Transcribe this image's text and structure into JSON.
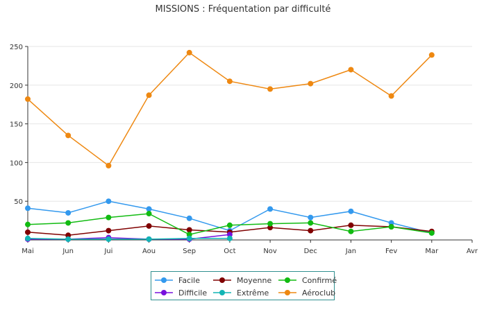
{
  "chart_data": {
    "type": "line",
    "title": "MISSIONS : Fréquentation par difficulté",
    "xlabel": "",
    "ylabel": "",
    "categories": [
      "Mai",
      "Jun",
      "Jui",
      "Aou",
      "Sep",
      "Oct",
      "Nov",
      "Dec",
      "Jan",
      "Fev",
      "Mar",
      "Avr"
    ],
    "ylim": [
      0,
      250
    ],
    "yticks": [
      0,
      50,
      100,
      150,
      200,
      250
    ],
    "ytick_labels": [
      "",
      "50",
      "100",
      "150",
      "200",
      "250"
    ],
    "grid": "horizontal",
    "legend_position": "bottom",
    "series": [
      {
        "name": "Facile",
        "color": "#3399ee",
        "values": [
          41,
          35,
          50,
          40,
          28,
          12,
          40,
          29,
          37,
          22,
          9,
          null
        ]
      },
      {
        "name": "Moyenne",
        "color": "#800000",
        "values": [
          10,
          6,
          12,
          18,
          13,
          10,
          16,
          12,
          19,
          17,
          11,
          null
        ]
      },
      {
        "name": "Confirmé",
        "color": "#11bb11",
        "values": [
          20,
          22,
          29,
          34,
          7,
          19,
          21,
          22,
          11,
          17,
          9,
          null
        ]
      },
      {
        "name": "Difficile",
        "color": "#7711dd",
        "values": [
          1,
          1,
          3,
          1,
          1,
          7,
          null,
          null,
          null,
          null,
          null,
          null
        ]
      },
      {
        "name": "Extrême",
        "color": "#11b5b5",
        "values": [
          2,
          1,
          1,
          1,
          2,
          2,
          null,
          null,
          null,
          null,
          null,
          null
        ]
      },
      {
        "name": "Aéroclub",
        "color": "#ee8811",
        "values": [
          182,
          135,
          96,
          187,
          242,
          205,
          195,
          202,
          220,
          186,
          239,
          null
        ]
      }
    ]
  }
}
